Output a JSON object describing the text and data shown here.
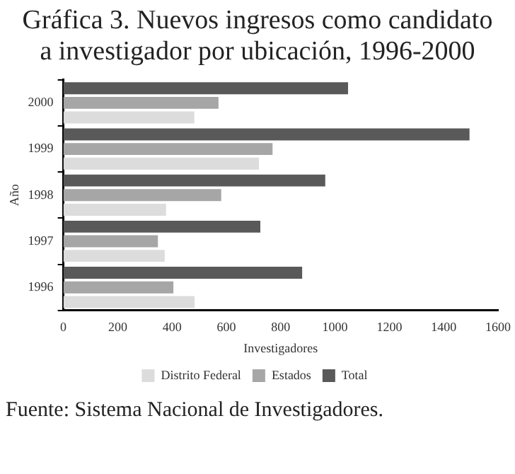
{
  "chart_data": {
    "type": "bar",
    "orientation": "horizontal",
    "title": "Gráfica 3. Nuevos ingresos como candidato a investigador por ubicación, 1996-2000",
    "xlabel": "Investigadores",
    "ylabel": "Año",
    "categories": [
      "2000",
      "1999",
      "1998",
      "1997",
      "1996"
    ],
    "series": [
      {
        "name": "Distrito Federal",
        "color": "#dcdcdc",
        "values": [
          482,
          720,
          378,
          373,
          483
        ]
      },
      {
        "name": "Estados",
        "color": "#a6a6a6",
        "values": [
          571,
          770,
          581,
          348,
          405
        ]
      },
      {
        "name": "Total",
        "color": "#595959",
        "values": [
          1048,
          1495,
          964,
          725,
          879
        ]
      }
    ],
    "xlim": [
      0,
      1600
    ],
    "xticks": [
      0,
      200,
      400,
      600,
      800,
      1000,
      1200,
      1400,
      1600
    ],
    "grid": false,
    "legend": "bottom",
    "annotations": [
      "Fuente: Sistema Nacional de Investigadores."
    ]
  }
}
